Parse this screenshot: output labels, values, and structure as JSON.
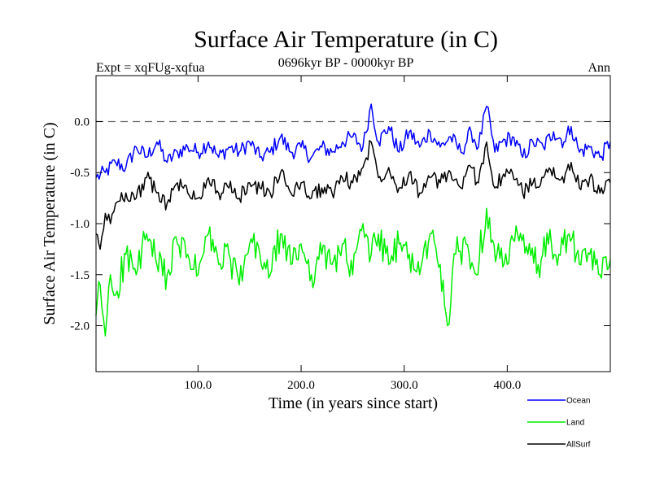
{
  "chart_data": {
    "type": "line",
    "title": "Surface Air Temperature (in C)",
    "expt_label": "Expt = xqFUg-xqfua",
    "period_label": "0696kyr BP - 0000kyr BP",
    "season_label": "Ann",
    "xlabel": "Time (in years since start)",
    "ylabel": "Surface Air Temperature (in C)",
    "xlim": [
      1,
      500
    ],
    "ylim": [
      -2.45,
      0.45
    ],
    "x_ticks": [
      100,
      200,
      300,
      400
    ],
    "x_tick_labels": [
      "100.0",
      "200.0",
      "300.0",
      "400.0"
    ],
    "y_ticks": [
      0.0,
      -0.5,
      -1.0,
      -1.5,
      -2.0
    ],
    "y_tick_labels": [
      "0.0",
      "-0.5",
      "-1.0",
      "-1.5",
      "-2.0"
    ],
    "reference_line": 0.0,
    "legend_position": "bottom-right",
    "series": [
      {
        "name": "Ocean",
        "color": "#0000ff",
        "x": [
          1,
          10,
          20,
          30,
          40,
          50,
          60,
          70,
          80,
          90,
          100,
          110,
          120,
          130,
          140,
          150,
          160,
          170,
          180,
          190,
          200,
          210,
          220,
          230,
          240,
          250,
          260,
          268,
          275,
          285,
          295,
          305,
          315,
          325,
          335,
          345,
          355,
          365,
          372,
          380,
          388,
          395,
          405,
          415,
          425,
          435,
          445,
          455,
          462,
          470,
          480,
          490,
          500
        ],
        "values": [
          -0.55,
          -0.5,
          -0.4,
          -0.45,
          -0.25,
          -0.35,
          -0.2,
          -0.4,
          -0.3,
          -0.25,
          -0.3,
          -0.2,
          -0.35,
          -0.25,
          -0.3,
          -0.2,
          -0.35,
          -0.3,
          -0.15,
          -0.3,
          -0.25,
          -0.35,
          -0.25,
          -0.3,
          -0.2,
          -0.15,
          -0.25,
          0.17,
          -0.2,
          -0.05,
          -0.3,
          -0.1,
          -0.25,
          -0.1,
          -0.25,
          -0.15,
          -0.3,
          -0.1,
          -0.25,
          0.15,
          -0.3,
          -0.2,
          -0.15,
          -0.35,
          -0.2,
          -0.25,
          -0.1,
          -0.2,
          -0.05,
          -0.3,
          -0.25,
          -0.35,
          -0.2
        ]
      },
      {
        "name": "Land",
        "color": "#00ee00",
        "x": [
          1,
          5,
          10,
          15,
          20,
          30,
          40,
          50,
          60,
          70,
          80,
          90,
          100,
          110,
          120,
          130,
          140,
          150,
          160,
          170,
          180,
          190,
          200,
          210,
          220,
          230,
          240,
          250,
          260,
          268,
          275,
          285,
          295,
          305,
          315,
          325,
          335,
          342,
          350,
          360,
          370,
          380,
          390,
          400,
          410,
          420,
          430,
          440,
          450,
          460,
          470,
          480,
          490,
          500
        ],
        "values": [
          -1.9,
          -1.6,
          -2.1,
          -1.5,
          -1.7,
          -1.3,
          -1.5,
          -1.1,
          -1.4,
          -1.5,
          -1.2,
          -1.3,
          -1.5,
          -1.1,
          -1.4,
          -1.3,
          -1.6,
          -1.2,
          -1.3,
          -1.5,
          -1.1,
          -1.4,
          -1.2,
          -1.5,
          -1.3,
          -1.4,
          -1.2,
          -1.5,
          -1.0,
          -1.3,
          -1.1,
          -1.4,
          -1.2,
          -1.3,
          -1.5,
          -1.1,
          -1.4,
          -2.0,
          -1.3,
          -1.2,
          -1.5,
          -0.85,
          -1.3,
          -1.4,
          -1.1,
          -1.3,
          -1.4,
          -1.2,
          -1.3,
          -1.1,
          -1.4,
          -1.3,
          -1.5,
          -1.35
        ]
      },
      {
        "name": "AllSurf",
        "color": "#000000",
        "x": [
          1,
          5,
          10,
          15,
          20,
          30,
          40,
          50,
          60,
          70,
          80,
          90,
          100,
          110,
          120,
          130,
          140,
          150,
          160,
          170,
          180,
          190,
          200,
          210,
          220,
          230,
          240,
          250,
          260,
          268,
          275,
          285,
          295,
          305,
          315,
          325,
          335,
          345,
          355,
          365,
          372,
          380,
          388,
          395,
          405,
          415,
          425,
          435,
          445,
          455,
          462,
          470,
          480,
          490,
          500
        ],
        "values": [
          -1.1,
          -1.25,
          -0.9,
          -1.0,
          -0.8,
          -0.7,
          -0.75,
          -0.55,
          -0.7,
          -0.8,
          -0.6,
          -0.7,
          -0.75,
          -0.55,
          -0.7,
          -0.65,
          -0.75,
          -0.6,
          -0.65,
          -0.7,
          -0.5,
          -0.7,
          -0.6,
          -0.75,
          -0.65,
          -0.7,
          -0.55,
          -0.6,
          -0.45,
          -0.2,
          -0.55,
          -0.45,
          -0.65,
          -0.5,
          -0.7,
          -0.55,
          -0.6,
          -0.5,
          -0.65,
          -0.45,
          -0.6,
          -0.2,
          -0.65,
          -0.55,
          -0.5,
          -0.7,
          -0.6,
          -0.55,
          -0.45,
          -0.6,
          -0.4,
          -0.65,
          -0.55,
          -0.7,
          -0.6
        ]
      }
    ]
  }
}
